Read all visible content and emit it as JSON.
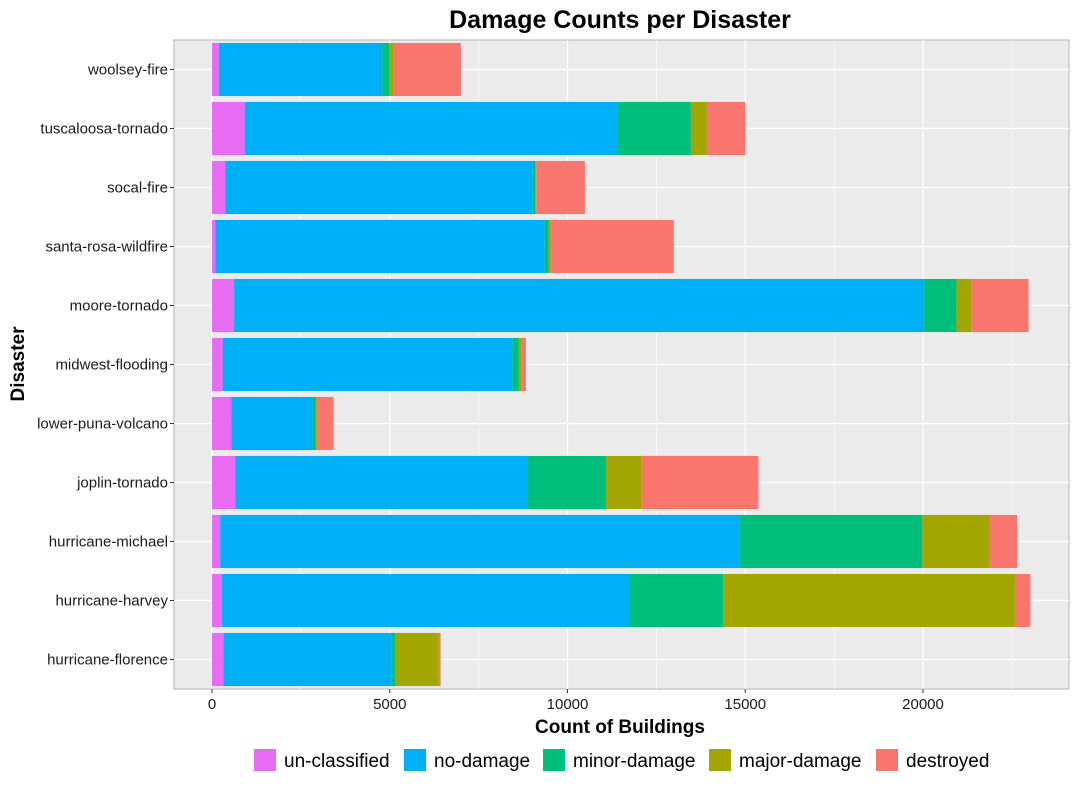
{
  "chart_data": {
    "type": "bar",
    "orientation": "horizontal",
    "stacked": true,
    "title": "Damage Counts per Disaster",
    "xlabel": "Count of Buildings",
    "ylabel": "Disaster",
    "xlim": [
      0,
      24000
    ],
    "xticks": [
      0,
      5000,
      10000,
      15000,
      20000
    ],
    "grid": true,
    "legend_position": "bottom",
    "categories": [
      "hurricane-florence",
      "hurricane-harvey",
      "hurricane-michael",
      "joplin-tornado",
      "lower-puna-volcano",
      "midwest-flooding",
      "moore-tornado",
      "santa-rosa-wildfire",
      "socal-fire",
      "tuscaloosa-tornado",
      "woolsey-fire"
    ],
    "series": [
      {
        "name": "un-classified",
        "color": "#E76BF3",
        "values": [
          320,
          280,
          230,
          660,
          540,
          300,
          620,
          90,
          380,
          920,
          190
        ]
      },
      {
        "name": "no-damage",
        "color": "#00B0F6",
        "values": [
          4720,
          11450,
          14600,
          8230,
          2290,
          8150,
          19410,
          9270,
          8640,
          10500,
          4600
        ]
      },
      {
        "name": "minor-damage",
        "color": "#00BF7D",
        "values": [
          110,
          2650,
          5150,
          2200,
          90,
          180,
          910,
          110,
          70,
          2050,
          200
        ]
      },
      {
        "name": "major-damage",
        "color": "#A3A500",
        "values": [
          1230,
          8230,
          1900,
          1000,
          20,
          80,
          430,
          50,
          30,
          450,
          120
        ]
      },
      {
        "name": "destroyed",
        "color": "#F8766D",
        "values": [
          50,
          410,
          770,
          3280,
          480,
          120,
          1600,
          3470,
          1370,
          1080,
          1890
        ]
      }
    ]
  }
}
